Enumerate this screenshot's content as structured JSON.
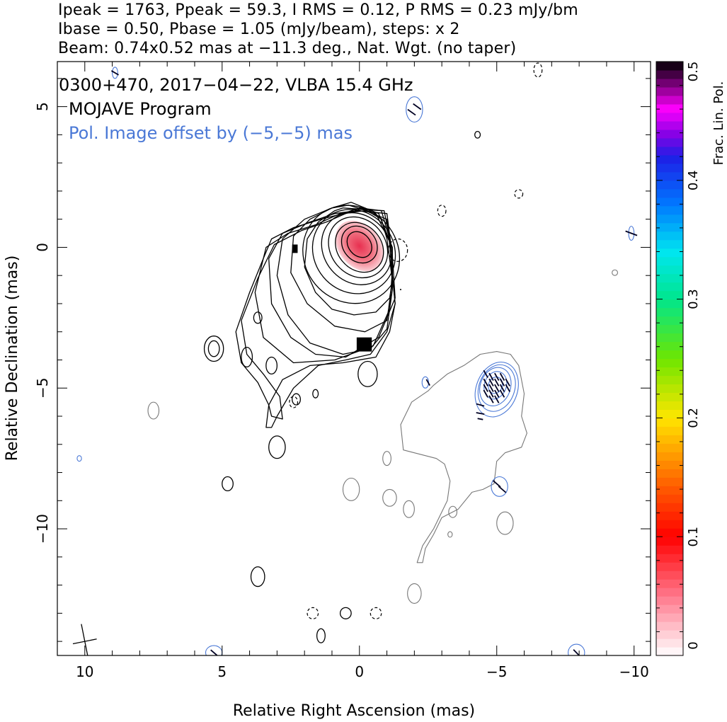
{
  "header": {
    "line1": "Ipeak = 1763, Ppeak = 59.3, I RMS = 0.12, P RMS = 0.23 mJy/bm",
    "line2": "Ibase = 0.50, Pbase = 1.05 (mJy/beam), steps: x 2",
    "line3": "Beam: 0.74x0.52 mas at −11.3 deg., Nat. Wgt. (no taper)"
  },
  "annotations": {
    "source": "0300+470, 2017−04−22, VLBA 15.4 GHz",
    "program": "MOJAVE Program",
    "offset_note": "Pol. Image offset by (−5,−5) mas"
  },
  "colors": {
    "stokes_i_contour": "#000000",
    "pol_intensity_contour": "#4a78d6",
    "offset_total_contour": "#777777",
    "evpa_ticks": "#000022"
  },
  "chart_data": {
    "type": "contour",
    "xlabel": "Relative Right Ascension (mas)",
    "ylabel": "Relative Declination (mas)",
    "xlim": [
      11,
      -10.6
    ],
    "ylim": [
      -14.5,
      6.6
    ],
    "xticks": [
      {
        "value": 10,
        "label": "10"
      },
      {
        "value": 5,
        "label": "5"
      },
      {
        "value": 0,
        "label": "0"
      },
      {
        "value": -5,
        "label": "−5"
      },
      {
        "value": -10,
        "label": "−10"
      }
    ],
    "yticks": [
      {
        "value": 5,
        "label": "5"
      },
      {
        "value": 0,
        "label": "0"
      },
      {
        "value": -5,
        "label": "−5"
      },
      {
        "value": -10,
        "label": "−10"
      }
    ],
    "colorbar": {
      "label": "Frac. Lin. Pol.",
      "range": [
        0,
        0.5
      ],
      "ticks": [
        {
          "value": 0,
          "label": "0"
        },
        {
          "value": 0.1,
          "label": "0.1"
        },
        {
          "value": 0.2,
          "label": "0.2"
        },
        {
          "value": 0.3,
          "label": "0.3"
        },
        {
          "value": 0.4,
          "label": "0.4"
        },
        {
          "value": 0.5,
          "label": "0.5"
        }
      ]
    },
    "core": {
      "x": 0,
      "y": 0,
      "peak_frac_pol": 0.03
    },
    "stokes_i_contours": [
      {
        "cx": 0.0,
        "cy": 0.1,
        "rx": 0.4,
        "ry": 0.5,
        "rot": -40
      },
      {
        "cx": 0.0,
        "cy": 0.1,
        "rx": 0.6,
        "ry": 0.7,
        "rot": -40
      },
      {
        "cx": 0.0,
        "cy": 0.0,
        "rx": 0.8,
        "ry": 0.95,
        "rot": -40
      },
      {
        "cx": 0.05,
        "cy": 0.0,
        "rx": 1.0,
        "ry": 1.15,
        "rot": -40
      },
      {
        "cx": 0.1,
        "cy": -0.05,
        "rx": 1.2,
        "ry": 1.35,
        "rot": -40
      },
      {
        "cx": 0.2,
        "cy": -0.15,
        "rx": 1.45,
        "ry": 1.55,
        "rot": -40
      },
      {
        "cx": 0.3,
        "cy": -0.25,
        "rx": 1.7,
        "ry": 1.8,
        "rot": -40
      }
    ],
    "stokes_i_outlines": [
      [
        [
          0.6,
          1.4
        ],
        [
          -0.2,
          1.35
        ],
        [
          -0.8,
          1.0
        ],
        [
          -1.0,
          0.3
        ],
        [
          -1.1,
          -0.4
        ],
        [
          -1.2,
          -1.2
        ],
        [
          -1.1,
          -1.8
        ],
        [
          -0.6,
          -2.3
        ],
        [
          0.2,
          -2.4
        ],
        [
          1.0,
          -2.2
        ],
        [
          1.6,
          -1.6
        ],
        [
          2.0,
          -0.7
        ],
        [
          1.9,
          0.3
        ],
        [
          1.5,
          0.9
        ],
        [
          0.9,
          1.3
        ],
        [
          0.6,
          1.4
        ]
      ],
      [
        [
          0.4,
          1.5
        ],
        [
          -0.6,
          1.2
        ],
        [
          -1.1,
          0.2
        ],
        [
          -1.2,
          -1.2
        ],
        [
          -1.0,
          -2.6
        ],
        [
          -0.2,
          -3.0
        ],
        [
          0.9,
          -2.8
        ],
        [
          1.9,
          -2.0
        ],
        [
          2.5,
          -0.9
        ],
        [
          2.4,
          0.4
        ],
        [
          1.8,
          1.0
        ],
        [
          1.0,
          1.4
        ],
        [
          0.4,
          1.5
        ]
      ],
      [
        [
          0.3,
          1.6
        ],
        [
          -0.7,
          1.2
        ],
        [
          -1.2,
          0.0
        ],
        [
          -1.2,
          -1.5
        ],
        [
          -1.0,
          -2.9
        ],
        [
          -0.4,
          -3.6
        ],
        [
          0.6,
          -3.8
        ],
        [
          1.8,
          -3.4
        ],
        [
          2.6,
          -2.4
        ],
        [
          3.0,
          -1.0
        ],
        [
          2.8,
          0.3
        ],
        [
          2.0,
          1.0
        ],
        [
          1.0,
          1.4
        ],
        [
          0.3,
          1.6
        ]
      ],
      [
        [
          0.1,
          1.3
        ],
        [
          -1.0,
          1.2
        ],
        [
          -1.2,
          -0.3
        ],
        [
          -1.3,
          -1.8
        ],
        [
          -0.7,
          -3.2
        ],
        [
          0.5,
          -3.9
        ],
        [
          1.6,
          -3.8
        ],
        [
          2.5,
          -3.2
        ],
        [
          3.2,
          -2.0
        ],
        [
          3.3,
          -0.4
        ],
        [
          2.8,
          0.5
        ],
        [
          1.8,
          0.9
        ],
        [
          0.9,
          1.2
        ],
        [
          0.1,
          1.3
        ]
      ],
      [
        [
          -0.2,
          1.3
        ],
        [
          -1.0,
          1.0
        ],
        [
          -1.2,
          -0.8
        ],
        [
          -1.1,
          -2.2
        ],
        [
          -0.5,
          -3.5
        ],
        [
          0.9,
          -4.0
        ],
        [
          2.4,
          -4.1
        ],
        [
          3.5,
          -3.2
        ],
        [
          3.8,
          -1.6
        ],
        [
          3.4,
          0.0
        ],
        [
          2.6,
          0.5
        ],
        [
          1.6,
          0.8
        ],
        [
          0.7,
          1.2
        ],
        [
          -0.2,
          1.3
        ]
      ],
      [
        [
          0.0,
          1.35
        ],
        [
          -0.9,
          1.3
        ],
        [
          -1.1,
          0.3
        ],
        [
          -1.2,
          -1.0
        ],
        [
          -1.3,
          -2.0
        ],
        [
          -1.1,
          -3.0
        ],
        [
          -0.6,
          -3.9
        ],
        [
          0.6,
          -4.1
        ],
        [
          1.8,
          -4.2
        ],
        [
          2.8,
          -4.7
        ],
        [
          3.3,
          -5.6
        ],
        [
          3.2,
          -6.0
        ],
        [
          2.8,
          -6.1
        ],
        [
          2.9,
          -5.3
        ],
        [
          3.5,
          -4.5
        ],
        [
          4.1,
          -3.8
        ],
        [
          4.3,
          -2.6
        ],
        [
          3.7,
          -1.1
        ],
        [
          3.1,
          0.1
        ],
        [
          2.1,
          0.6
        ],
        [
          1.2,
          0.9
        ],
        [
          0.5,
          1.2
        ],
        [
          0.0,
          1.35
        ]
      ],
      [
        [
          0.0,
          1.4
        ],
        [
          -0.8,
          1.3
        ],
        [
          -1.1,
          0.3
        ],
        [
          -1.2,
          -1.0
        ],
        [
          -1.3,
          -2.0
        ],
        [
          -1.0,
          -3.0
        ],
        [
          -0.4,
          -3.8
        ],
        [
          0.5,
          -4.0
        ],
        [
          1.5,
          -4.2
        ],
        [
          2.4,
          -5.0
        ],
        [
          3.0,
          -6.0
        ],
        [
          3.2,
          -6.4
        ],
        [
          3.4,
          -6.4
        ],
        [
          3.3,
          -5.6
        ],
        [
          3.7,
          -4.8
        ],
        [
          4.3,
          -4.1
        ],
        [
          4.5,
          -3.0
        ],
        [
          4.0,
          -1.6
        ],
        [
          3.5,
          -0.4
        ],
        [
          3.2,
          0.3
        ],
        [
          2.4,
          0.7
        ],
        [
          1.4,
          1.0
        ],
        [
          0.6,
          1.2
        ],
        [
          0.0,
          1.4
        ]
      ]
    ],
    "stokes_i_islands": [
      {
        "cx": 5.3,
        "cy": -3.6,
        "rx": 0.35,
        "ry": 0.45
      },
      {
        "cx": 5.3,
        "cy": -3.6,
        "rx": 0.2,
        "ry": 0.28
      },
      {
        "cx": 4.1,
        "cy": -3.9,
        "rx": 0.2,
        "ry": 0.35
      },
      {
        "cx": 3.2,
        "cy": -4.2,
        "rx": 0.2,
        "ry": 0.3
      },
      {
        "cx": 3.0,
        "cy": -7.1,
        "rx": 0.3,
        "ry": 0.4
      },
      {
        "cx": 4.8,
        "cy": -8.4,
        "rx": 0.2,
        "ry": 0.25
      },
      {
        "cx": 3.7,
        "cy": -2.5,
        "rx": 0.15,
        "ry": 0.2
      },
      {
        "cx": 1.6,
        "cy": -5.2,
        "rx": 0.1,
        "ry": 0.15
      },
      {
        "cx": 2.3,
        "cy": -5.4,
        "rx": 0.15,
        "ry": 0.2
      },
      {
        "cx": -0.3,
        "cy": -4.5,
        "rx": 0.35,
        "ry": 0.45
      },
      {
        "cx": 3.7,
        "cy": -11.7,
        "rx": 0.25,
        "ry": 0.35
      },
      {
        "cx": 1.4,
        "cy": -13.8,
        "rx": 0.15,
        "ry": 0.25
      },
      {
        "cx": 0.5,
        "cy": -13.0,
        "rx": 0.2,
        "ry": 0.2
      },
      {
        "cx": -4.3,
        "cy": 4.0,
        "rx": 0.1,
        "ry": 0.12
      },
      {
        "cx": -1.5,
        "cy": -1.5,
        "rx": 0.01,
        "ry": 0.01
      }
    ],
    "stokes_i_negative": [
      {
        "cx": -1.4,
        "cy": -0.1,
        "rx": 0.35,
        "ry": 0.4
      },
      {
        "cx": -5.8,
        "cy": 1.9,
        "rx": 0.15,
        "ry": 0.15
      },
      {
        "cx": -3.0,
        "cy": 1.3,
        "rx": 0.15,
        "ry": 0.2
      },
      {
        "cx": 1.7,
        "cy": -13.0,
        "rx": 0.2,
        "ry": 0.2
      },
      {
        "cx": -0.6,
        "cy": -13.0,
        "rx": 0.2,
        "ry": 0.2
      },
      {
        "cx": 2.4,
        "cy": -5.5,
        "rx": 0.15,
        "ry": 0.2
      },
      {
        "cx": -6.5,
        "cy": 6.3,
        "rx": 0.15,
        "ry": 0.25
      }
    ],
    "offset_total_outline": [
      [
        -3.2,
        -4.5
      ],
      [
        -3.8,
        -4.2
      ],
      [
        -4.4,
        -3.8
      ],
      [
        -5.0,
        -3.7
      ],
      [
        -5.5,
        -3.8
      ],
      [
        -5.8,
        -4.2
      ],
      [
        -6.0,
        -5.2
      ],
      [
        -5.9,
        -6.0
      ],
      [
        -6.1,
        -6.6
      ],
      [
        -5.9,
        -7.1
      ],
      [
        -5.3,
        -7.3
      ],
      [
        -5.0,
        -7.6
      ],
      [
        -4.9,
        -8.4
      ],
      [
        -4.5,
        -8.6
      ],
      [
        -4.1,
        -8.7
      ],
      [
        -3.6,
        -9.3
      ],
      [
        -3.0,
        -9.6
      ],
      [
        -2.7,
        -10.2
      ],
      [
        -2.4,
        -10.7
      ],
      [
        -2.3,
        -11.2
      ],
      [
        -2.1,
        -11.2
      ],
      [
        -2.3,
        -10.6
      ],
      [
        -2.7,
        -10.0
      ],
      [
        -3.2,
        -9.0
      ],
      [
        -3.3,
        -8.3
      ],
      [
        -3.1,
        -7.7
      ],
      [
        -2.8,
        -7.5
      ],
      [
        -1.6,
        -7.2
      ],
      [
        -1.5,
        -6.3
      ],
      [
        -1.9,
        -5.5
      ],
      [
        -2.5,
        -5.1
      ],
      [
        -2.7,
        -4.9
      ],
      [
        -3.2,
        -4.5
      ]
    ],
    "offset_total_islands": [
      {
        "cx": 7.5,
        "cy": -5.8,
        "rx": 0.2,
        "ry": 0.3
      },
      {
        "cx": 0.3,
        "cy": -8.6,
        "rx": 0.3,
        "ry": 0.4
      },
      {
        "cx": -1.1,
        "cy": -8.9,
        "rx": 0.25,
        "ry": 0.3
      },
      {
        "cx": -1.8,
        "cy": -9.3,
        "rx": 0.2,
        "ry": 0.3
      },
      {
        "cx": -3.4,
        "cy": -9.4,
        "rx": 0.15,
        "ry": 0.2
      },
      {
        "cx": -5.3,
        "cy": -9.8,
        "rx": 0.3,
        "ry": 0.4
      },
      {
        "cx": -2.0,
        "cy": -12.3,
        "rx": 0.25,
        "ry": 0.35
      },
      {
        "cx": -1.0,
        "cy": -7.5,
        "rx": 0.15,
        "ry": 0.25
      },
      {
        "cx": -3.3,
        "cy": -10.2,
        "rx": 0.08,
        "ry": 0.1
      },
      {
        "cx": -9.3,
        "cy": -0.9,
        "rx": 0.1,
        "ry": 0.1
      }
    ],
    "pol_contours": [
      {
        "cx": -4.95,
        "cy": -4.9,
        "rx": 0.25,
        "ry": 0.3,
        "rot": 20
      },
      {
        "cx": -4.95,
        "cy": -4.9,
        "rx": 0.4,
        "ry": 0.5,
        "rot": 20
      },
      {
        "cx": -4.95,
        "cy": -4.95,
        "rx": 0.55,
        "ry": 0.7,
        "rot": 20
      },
      {
        "cx": -5.0,
        "cy": -5.0,
        "rx": 0.65,
        "ry": 0.85,
        "rot": 20
      },
      {
        "cx": -5.0,
        "cy": -5.05,
        "rx": 0.75,
        "ry": 1.0,
        "rot": 20
      },
      {
        "cx": -2.4,
        "cy": -4.8,
        "rx": 0.12,
        "ry": 0.2,
        "rot": 0
      },
      {
        "cx": -5.1,
        "cy": -8.5,
        "rx": 0.3,
        "ry": 0.35,
        "rot": 0
      },
      {
        "cx": -2.0,
        "cy": 4.9,
        "rx": 0.3,
        "ry": 0.45,
        "rot": 0
      },
      {
        "cx": 8.9,
        "cy": 6.2,
        "rx": 0.1,
        "ry": 0.2,
        "rot": 0
      },
      {
        "cx": 10.2,
        "cy": -7.5,
        "rx": 0.08,
        "ry": 0.1,
        "rot": 0
      },
      {
        "cx": 5.3,
        "cy": -14.4,
        "rx": 0.3,
        "ry": 0.25,
        "rot": 0
      },
      {
        "cx": -7.9,
        "cy": -14.4,
        "rx": 0.3,
        "ry": 0.3,
        "rot": 0
      },
      {
        "cx": -9.9,
        "cy": 0.5,
        "rx": 0.1,
        "ry": 0.25,
        "rot": 0
      }
    ],
    "pol_fill_blobs": [
      {
        "x": 2.45,
        "y": 0.1,
        "w": 0.2,
        "h": 0.3
      },
      {
        "x": 0.1,
        "y": -3.2,
        "w": 0.55,
        "h": 0.5
      }
    ],
    "evpa_vectors": [
      {
        "x": -4.6,
        "y": -4.5,
        "len": 0.3,
        "angle": 30
      },
      {
        "x": -4.8,
        "y": -4.6,
        "len": 0.3,
        "angle": 30
      },
      {
        "x": -5.0,
        "y": -4.6,
        "len": 0.3,
        "angle": 30
      },
      {
        "x": -5.2,
        "y": -4.6,
        "len": 0.3,
        "angle": 30
      },
      {
        "x": -4.6,
        "y": -4.8,
        "len": 0.3,
        "angle": 30
      },
      {
        "x": -4.8,
        "y": -4.8,
        "len": 0.3,
        "angle": 30
      },
      {
        "x": -5.0,
        "y": -4.8,
        "len": 0.3,
        "angle": 30
      },
      {
        "x": -5.2,
        "y": -4.8,
        "len": 0.3,
        "angle": 30
      },
      {
        "x": -5.4,
        "y": -4.8,
        "len": 0.3,
        "angle": 30
      },
      {
        "x": -4.6,
        "y": -5.0,
        "len": 0.3,
        "angle": 30
      },
      {
        "x": -4.8,
        "y": -5.0,
        "len": 0.3,
        "angle": 30
      },
      {
        "x": -5.0,
        "y": -5.0,
        "len": 0.3,
        "angle": 30
      },
      {
        "x": -5.2,
        "y": -5.0,
        "len": 0.3,
        "angle": 30
      },
      {
        "x": -5.4,
        "y": -5.0,
        "len": 0.3,
        "angle": 30
      },
      {
        "x": -4.6,
        "y": -5.2,
        "len": 0.3,
        "angle": 30
      },
      {
        "x": -4.8,
        "y": -5.2,
        "len": 0.3,
        "angle": 30
      },
      {
        "x": -5.0,
        "y": -5.2,
        "len": 0.3,
        "angle": 30
      },
      {
        "x": -5.2,
        "y": -5.2,
        "len": 0.3,
        "angle": 30
      },
      {
        "x": -4.8,
        "y": -5.4,
        "len": 0.3,
        "angle": 30
      },
      {
        "x": -5.0,
        "y": -5.4,
        "len": 0.3,
        "angle": 30
      },
      {
        "x": -4.4,
        "y": -5.6,
        "len": 0.3,
        "angle": 75
      },
      {
        "x": -4.4,
        "y": -5.9,
        "len": 0.3,
        "angle": 80
      },
      {
        "x": -4.4,
        "y": -6.1,
        "len": 0.2,
        "angle": 80
      },
      {
        "x": -2.5,
        "y": -4.8,
        "len": 0.25,
        "angle": 30
      },
      {
        "x": -5.0,
        "y": -8.4,
        "len": 0.35,
        "angle": 50
      },
      {
        "x": -5.2,
        "y": -8.6,
        "len": 0.35,
        "angle": 50
      },
      {
        "x": -1.9,
        "y": 4.8,
        "len": 0.35,
        "angle": 55
      },
      {
        "x": -2.1,
        "y": 5.0,
        "len": 0.35,
        "angle": 55
      },
      {
        "x": 8.9,
        "y": 6.2,
        "len": 0.3,
        "angle": 60
      },
      {
        "x": -9.9,
        "y": 0.5,
        "len": 0.45,
        "angle": 70
      },
      {
        "x": -7.9,
        "y": -14.4,
        "len": 0.3,
        "angle": 45
      },
      {
        "x": 5.3,
        "y": -14.4,
        "len": 0.3,
        "angle": 50
      }
    ],
    "beam": {
      "x": 10,
      "y": -14.0,
      "major": 0.74,
      "minor": 0.52,
      "pa_deg": -11.3
    }
  }
}
